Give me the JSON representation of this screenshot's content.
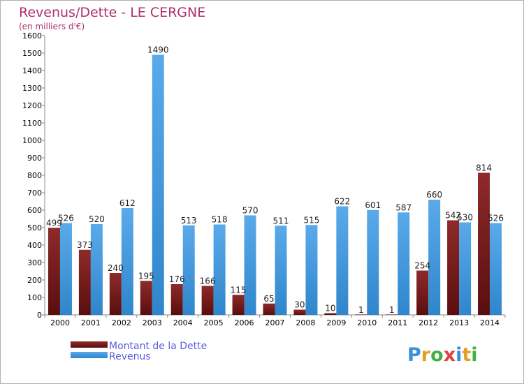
{
  "chart_data": {
    "type": "bar",
    "title": "Revenus/Dette - LE CERGNE",
    "subtitle": "(en milliers d'€)",
    "categories": [
      "2000",
      "2001",
      "2002",
      "2003",
      "2004",
      "2005",
      "2006",
      "2007",
      "2008",
      "2009",
      "2010",
      "2011",
      "2012",
      "2013",
      "2014"
    ],
    "series": [
      {
        "name": "Montant de la Dette",
        "color": "#7a1e1e",
        "values": [
          499,
          373,
          240,
          195,
          176,
          166,
          115,
          65,
          30,
          10,
          1,
          1,
          254,
          542,
          814
        ]
      },
      {
        "name": "Revenus",
        "color": "#4a9de0",
        "values": [
          526,
          520,
          612,
          1490,
          513,
          518,
          570,
          511,
          515,
          622,
          601,
          587,
          660,
          530,
          526
        ]
      }
    ],
    "ylim": [
      0,
      1600
    ],
    "ytick_step": 100,
    "ytick_labels": [
      "0",
      "100",
      "200",
      "300",
      "400",
      "500",
      "600",
      "700",
      "800",
      "900",
      "1000",
      "1100",
      "1200",
      "1300",
      "1400",
      "1500",
      "1600"
    ],
    "grid": false,
    "legend": "bottom-left"
  },
  "brand": {
    "letters": [
      "P",
      "r",
      "o",
      "x",
      "i",
      "t",
      "i"
    ],
    "colors": [
      "#3a8fd8",
      "#e0a020",
      "#40b040",
      "#e04040",
      "#3a8fd8",
      "#e0a020",
      "#40b040"
    ]
  }
}
